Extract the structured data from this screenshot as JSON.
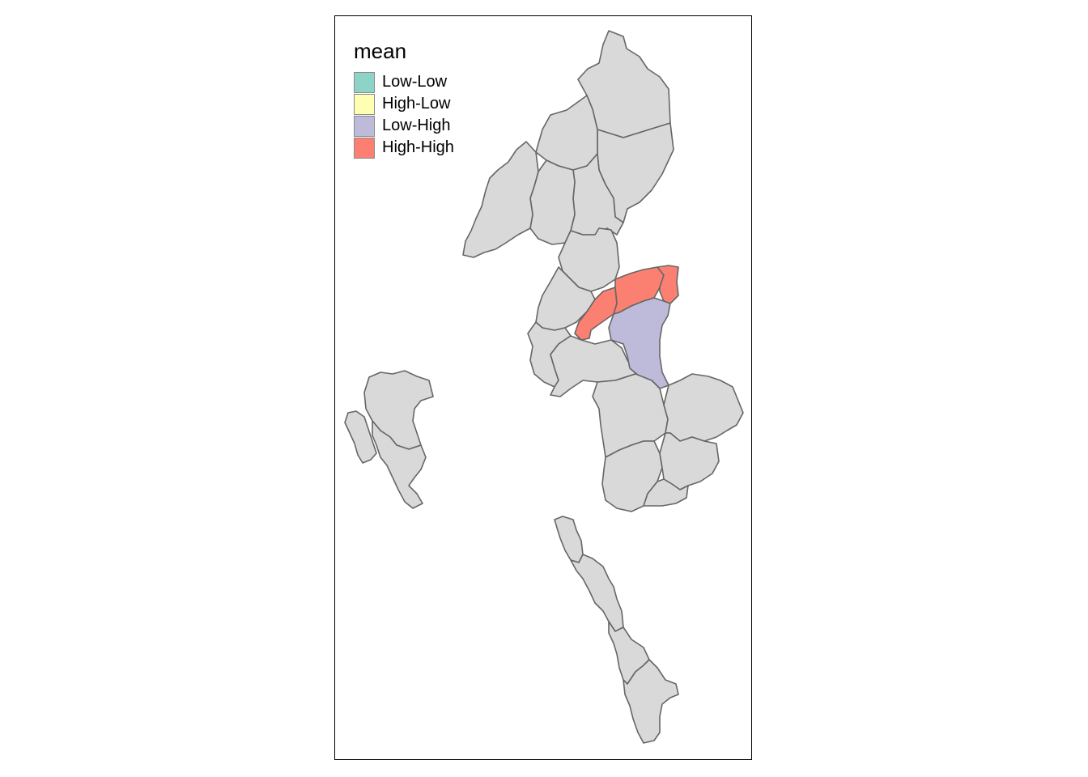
{
  "legend": {
    "title": "mean",
    "items": [
      {
        "label": "Low-Low",
        "color": "#8DD3C7"
      },
      {
        "label": "High-Low",
        "color": "#FFFFB3"
      },
      {
        "label": "Low-High",
        "color": "#BEBADA"
      },
      {
        "label": "High-High",
        "color": "#FB8072"
      }
    ]
  },
  "map": {
    "default_fill": "#D9D9D9",
    "border_color": "#666666",
    "regions": [
      {
        "id": "north-1",
        "category": null
      },
      {
        "id": "north-2",
        "category": null
      },
      {
        "id": "north-3",
        "category": null
      },
      {
        "id": "north-4",
        "category": null
      },
      {
        "id": "north-5",
        "category": null
      },
      {
        "id": "west-arm",
        "category": null
      },
      {
        "id": "central-north",
        "category": null
      },
      {
        "id": "central-west-1",
        "category": null
      },
      {
        "id": "central-west-2",
        "category": null
      },
      {
        "id": "central-west-3",
        "category": null
      },
      {
        "id": "hotspot-1",
        "category": "High-High"
      },
      {
        "id": "hotspot-2",
        "category": "High-High"
      },
      {
        "id": "hotspot-3",
        "category": "High-High"
      },
      {
        "id": "lowhigh-1",
        "category": "Low-High"
      },
      {
        "id": "east-1",
        "category": null
      },
      {
        "id": "east-2",
        "category": null
      },
      {
        "id": "east-3",
        "category": null
      },
      {
        "id": "east-4",
        "category": null
      },
      {
        "id": "east-5",
        "category": null
      },
      {
        "id": "island-1",
        "category": null
      },
      {
        "id": "island-2",
        "category": null
      },
      {
        "id": "island-3",
        "category": null
      },
      {
        "id": "south-1",
        "category": null
      },
      {
        "id": "south-2",
        "category": null
      },
      {
        "id": "south-3",
        "category": null
      },
      {
        "id": "south-4",
        "category": null
      }
    ]
  }
}
